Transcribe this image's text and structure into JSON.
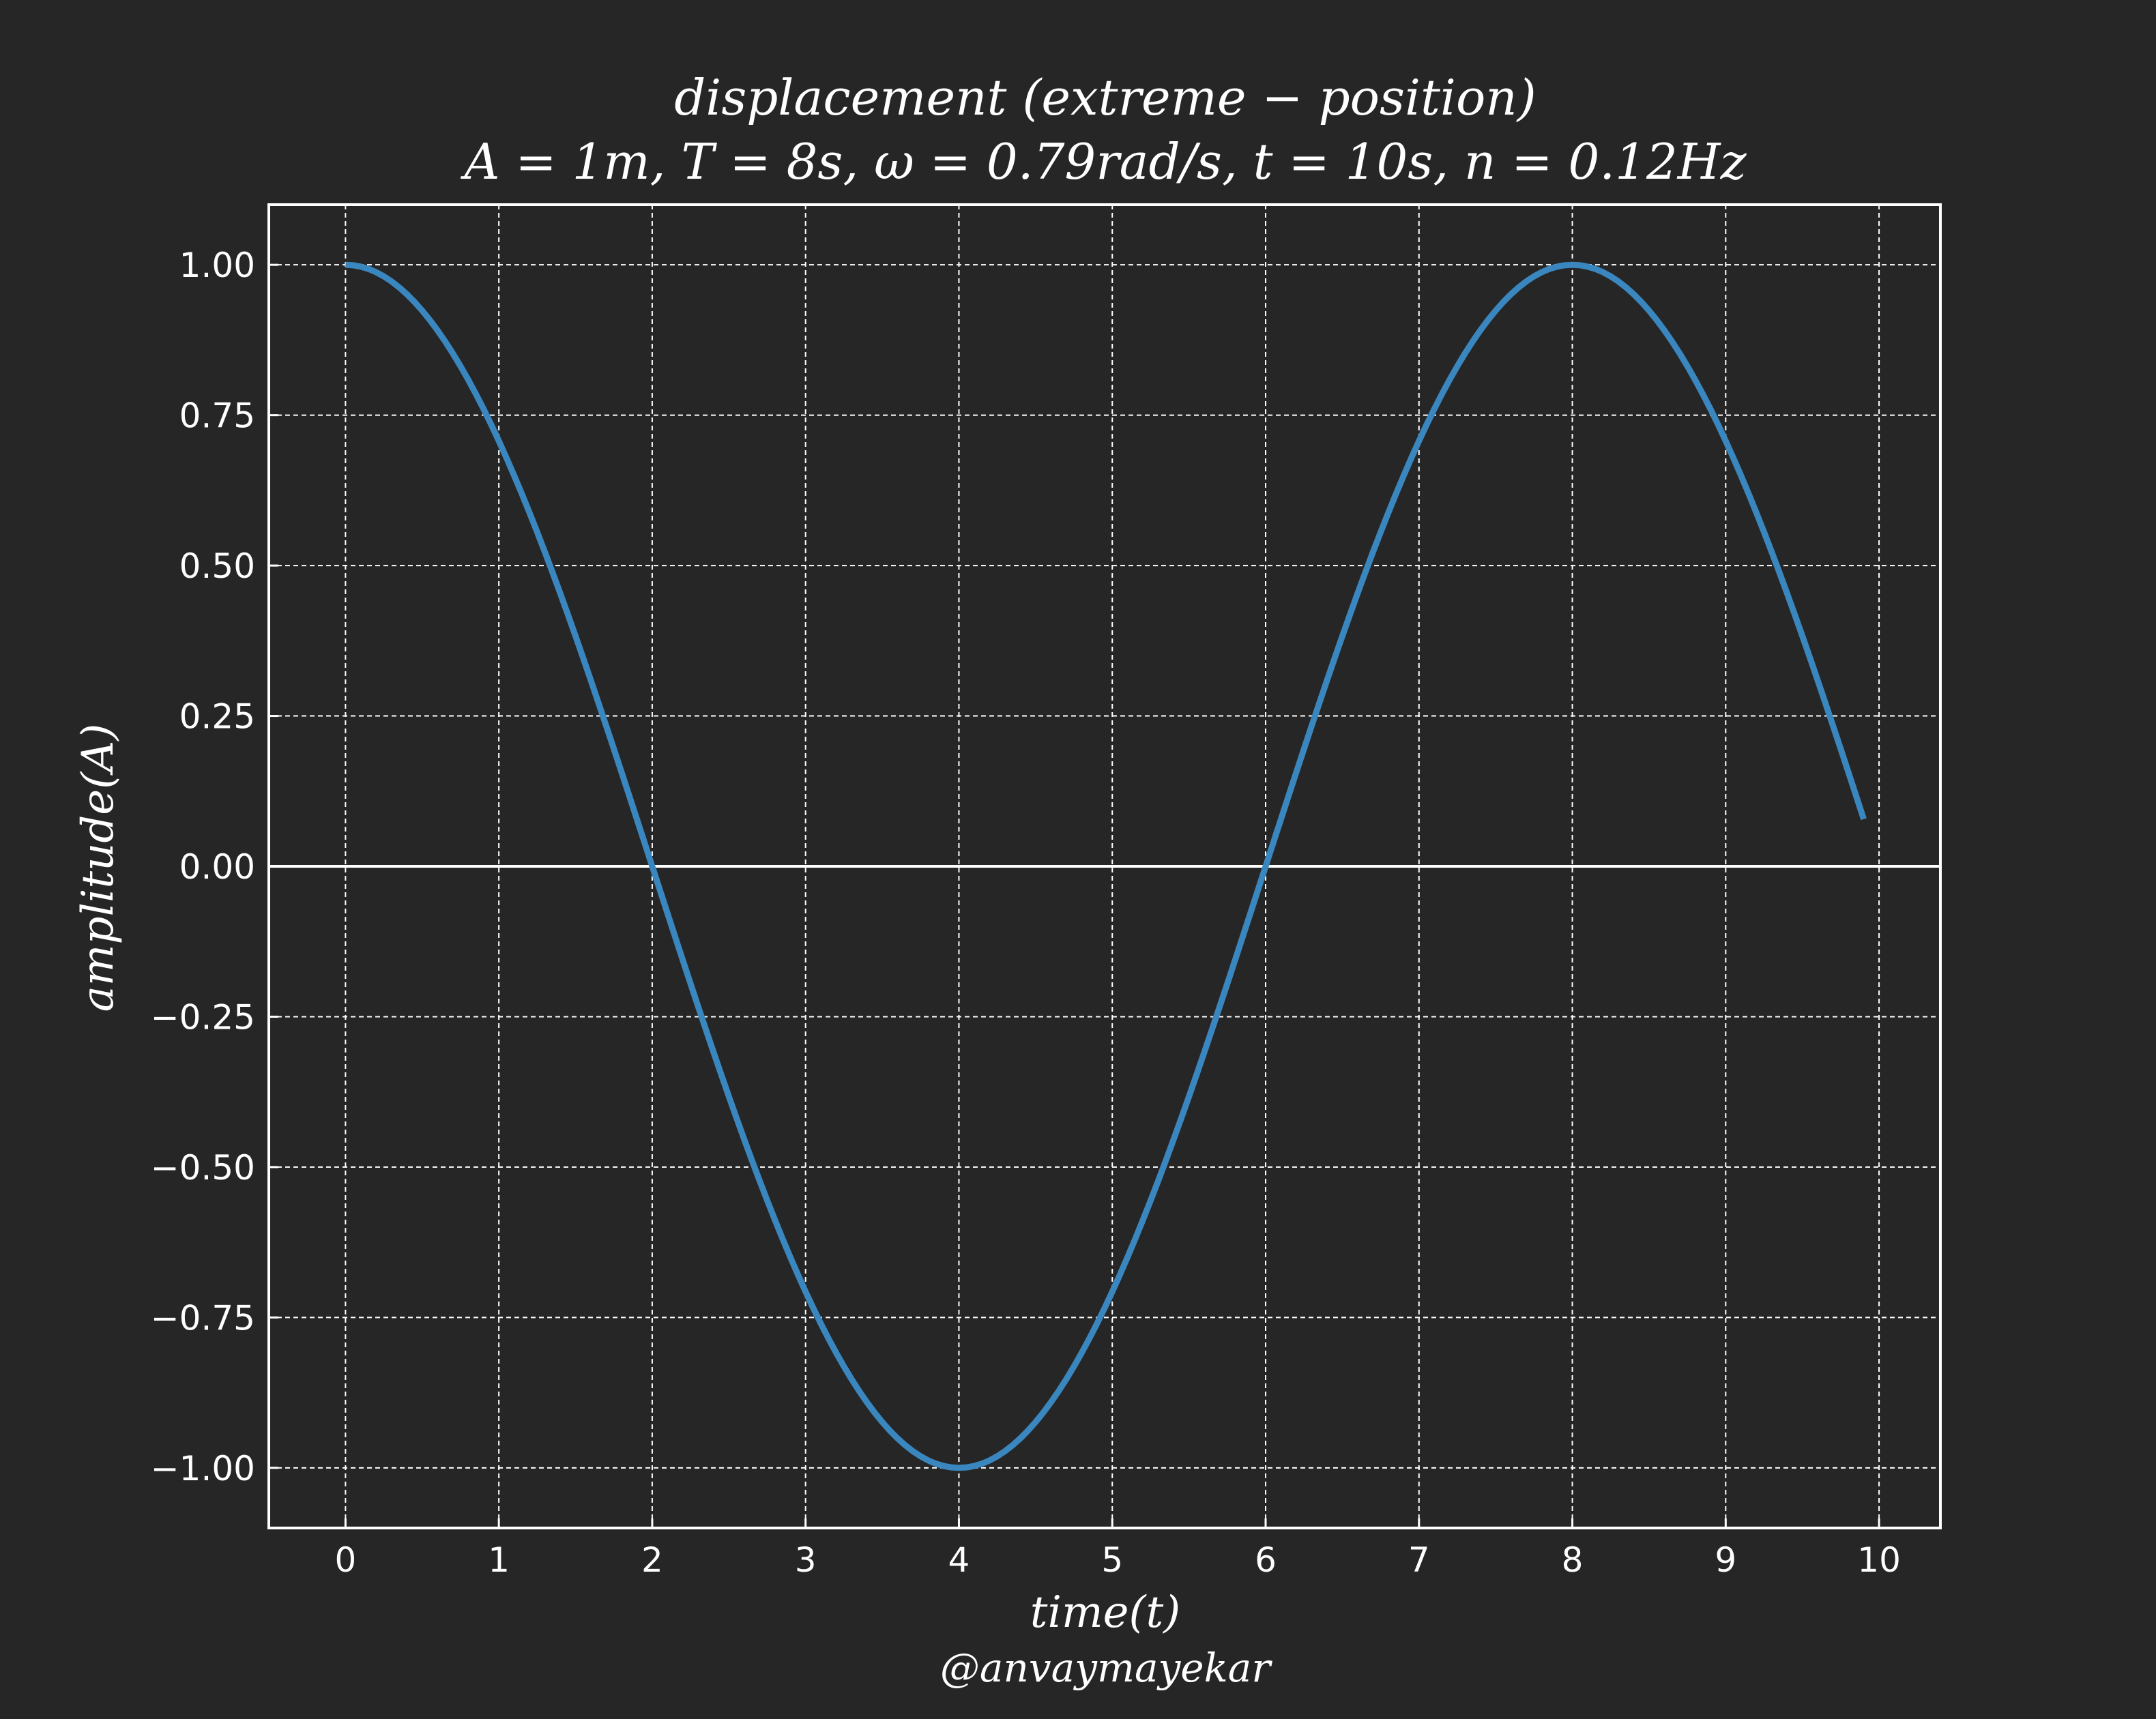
{
  "colors": {
    "background": "#262626",
    "axes": "#ffffff",
    "grid": "#ffffff",
    "series": "#3a87c0",
    "text": "#ffffff"
  },
  "chart_data": {
    "type": "line",
    "title_line1": "displacement (extreme − position)",
    "title_line2": "A = 1m, T = 8s, ω = 0.79rad/s, t = 10s, n = 0.12Hz",
    "xlabel": "time(t)",
    "ylabel": "amplitude(A)",
    "watermark": "@anvaymayekar",
    "xlim": [
      -0.5,
      10.4
    ],
    "ylim": [
      -1.1,
      1.1
    ],
    "xticks": [
      0,
      1,
      2,
      3,
      4,
      5,
      6,
      7,
      8,
      9,
      10
    ],
    "xtick_labels": [
      "0",
      "1",
      "2",
      "3",
      "4",
      "5",
      "6",
      "7",
      "8",
      "9",
      "10"
    ],
    "yticks": [
      1.0,
      0.75,
      0.5,
      0.25,
      0.0,
      -0.25,
      -0.5,
      -0.75,
      -1.0
    ],
    "ytick_labels": [
      "1.00",
      "0.75",
      "0.50",
      "0.25",
      "0.00",
      "−0.25",
      "−0.50",
      "−0.75",
      "−1.00"
    ],
    "grid": true,
    "grid_style": "dashed",
    "zero_line": true,
    "series": [
      {
        "function": "A*cos(omega*t)",
        "amplitude": 1,
        "omega": 0.785398,
        "t_start": 0,
        "t_end": 9.9,
        "t_step": 0.05,
        "x": [
          0,
          1,
          2,
          3,
          4,
          5,
          6,
          7,
          8,
          9,
          9.9
        ],
        "values": [
          1.0,
          0.707,
          0.0,
          -0.707,
          -1.0,
          -0.707,
          0.0,
          0.707,
          1.0,
          0.707,
          0.078
        ]
      }
    ]
  }
}
